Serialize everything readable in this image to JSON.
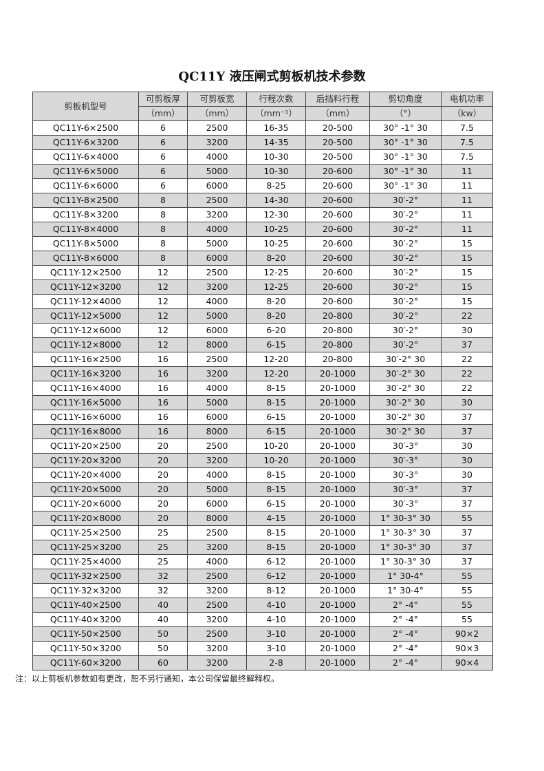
{
  "title": "QC11Y 液压闸式剪板机技术参数",
  "headers": {
    "model": "剪板机型号",
    "cols": [
      "可剪板厚",
      "可剪板宽",
      "行程次数",
      "后挡料行程",
      "剪切角度",
      "电机功率"
    ],
    "units": [
      "（mm）",
      "（mm）",
      "（mm⁻¹）",
      "（mm）",
      "（°）",
      "（kw）"
    ]
  },
  "rows": [
    [
      "QC11Y-6×2500",
      "6",
      "2500",
      "16-35",
      "20-500",
      "30° -1° 30",
      "7.5"
    ],
    [
      "QC11Y-6×3200",
      "6",
      "3200",
      "14-35",
      "20-500",
      "30° -1° 30",
      "7.5"
    ],
    [
      "QC11Y-6×4000",
      "6",
      "4000",
      "10-30",
      "20-500",
      "30° -1° 30",
      "7.5"
    ],
    [
      "QC11Y-6×5000",
      "6",
      "5000",
      "10-30",
      "20-600",
      "30° -1° 30",
      "11"
    ],
    [
      "QC11Y-6×6000",
      "6",
      "6000",
      "8-25",
      "20-600",
      "30° -1° 30",
      "11"
    ],
    [
      "QC11Y-8×2500",
      "8",
      "2500",
      "14-30",
      "20-600",
      "30′-2°",
      "11"
    ],
    [
      "QC11Y-8×3200",
      "8",
      "3200",
      "12-30",
      "20-600",
      "30′-2°",
      "11"
    ],
    [
      "QC11Y-8×4000",
      "8",
      "4000",
      "10-25",
      "20-600",
      "30′-2°",
      "11"
    ],
    [
      "QC11Y-8×5000",
      "8",
      "5000",
      "10-25",
      "20-600",
      "30′-2°",
      "15"
    ],
    [
      "QC11Y-8×6000",
      "8",
      "6000",
      "8-20",
      "20-600",
      "30′-2°",
      "15"
    ],
    [
      "QC11Y-12×2500",
      "12",
      "2500",
      "12-25",
      "20-600",
      "30′-2°",
      "15"
    ],
    [
      "QC11Y-12×3200",
      "12",
      "3200",
      "12-25",
      "20-600",
      "30′-2°",
      "15"
    ],
    [
      "QC11Y-12×4000",
      "12",
      "4000",
      "8-20",
      "20-600",
      "30′-2°",
      "15"
    ],
    [
      "QC11Y-12×5000",
      "12",
      "5000",
      "8-20",
      "20-800",
      "30′-2°",
      "22"
    ],
    [
      "QC11Y-12×6000",
      "12",
      "6000",
      "6-20",
      "20-800",
      "30′-2°",
      "30"
    ],
    [
      "QC11Y-12×8000",
      "12",
      "8000",
      "6-15",
      "20-800",
      "30′-2°",
      "37"
    ],
    [
      "QC11Y-16×2500",
      "16",
      "2500",
      "12-20",
      "20-800",
      "30′-2° 30",
      "22"
    ],
    [
      "QC11Y-16×3200",
      "16",
      "3200",
      "12-20",
      "20-1000",
      "30′-2° 30",
      "22"
    ],
    [
      "QC11Y-16×4000",
      "16",
      "4000",
      "8-15",
      "20-1000",
      "30′-2° 30",
      "22"
    ],
    [
      "QC11Y-16×5000",
      "16",
      "5000",
      "8-15",
      "20-1000",
      "30′-2° 30",
      "30"
    ],
    [
      "QC11Y-16×6000",
      "16",
      "6000",
      "6-15",
      "20-1000",
      "30′-2° 30",
      "37"
    ],
    [
      "QC11Y-16×8000",
      "16",
      "8000",
      "6-15",
      "20-1000",
      "30′-2° 30",
      "37"
    ],
    [
      "QC11Y-20×2500",
      "20",
      "2500",
      "10-20",
      "20-1000",
      "30′-3°",
      "30"
    ],
    [
      "QC11Y-20×3200",
      "20",
      "3200",
      "10-20",
      "20-1000",
      "30′-3°",
      "30"
    ],
    [
      "QC11Y-20×4000",
      "20",
      "4000",
      "8-15",
      "20-1000",
      "30′-3°",
      "30"
    ],
    [
      "QC11Y-20×5000",
      "20",
      "5000",
      "8-15",
      "20-1000",
      "30′-3°",
      "37"
    ],
    [
      "QC11Y-20×6000",
      "20",
      "6000",
      "6-15",
      "20-1000",
      "30′-3°",
      "37"
    ],
    [
      "QC11Y-20×8000",
      "20",
      "8000",
      "4-15",
      "20-1000",
      "1° 30-3° 30",
      "55"
    ],
    [
      "QC11Y-25×2500",
      "25",
      "2500",
      "8-15",
      "20-1000",
      "1° 30-3° 30",
      "37"
    ],
    [
      "QC11Y-25×3200",
      "25",
      "3200",
      "8-15",
      "20-1000",
      "1° 30-3° 30",
      "37"
    ],
    [
      "QC11Y-25×4000",
      "25",
      "4000",
      "6-12",
      "20-1000",
      "1° 30-3° 30",
      "37"
    ],
    [
      "QC11Y-32×2500",
      "32",
      "2500",
      "6-12",
      "20-1000",
      "1° 30-4°",
      "55"
    ],
    [
      "QC11Y-32×3200",
      "32",
      "3200",
      "8-12",
      "20-1000",
      "1° 30-4°",
      "55"
    ],
    [
      "QC11Y-40×2500",
      "40",
      "2500",
      "4-10",
      "20-1000",
      "2° -4°",
      "55"
    ],
    [
      "QC11Y-40×3200",
      "40",
      "3200",
      "4-10",
      "20-1000",
      "2° -4°",
      "55"
    ],
    [
      "QC11Y-50×2500",
      "50",
      "2500",
      "3-10",
      "20-1000",
      "2° -4°",
      "90×2"
    ],
    [
      "QC11Y-50×3200",
      "50",
      "3200",
      "3-10",
      "20-1000",
      "2° -4°",
      "90×3"
    ],
    [
      "QC11Y-60×3200",
      "60",
      "3200",
      "2-8",
      "20-1000",
      "2° -4°",
      "90×4"
    ]
  ],
  "note": "注：以上剪板机参数如有更改，恕不另行通知，本公司保留最终解释权。",
  "colors": {
    "stripe": "#d9d9d9",
    "border": "#444444"
  }
}
